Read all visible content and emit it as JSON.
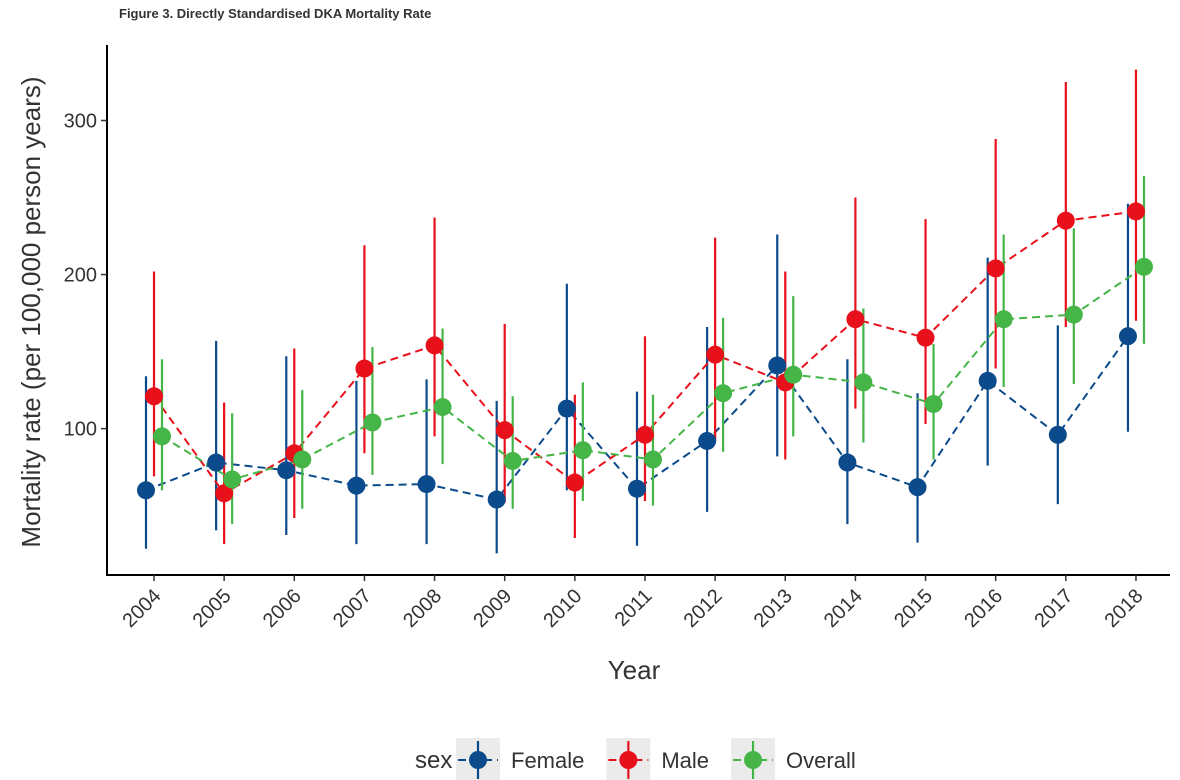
{
  "chart_data": {
    "type": "errorbar-line",
    "title": "Figure 3. Directly Standardised DKA Mortality Rate",
    "x_label": "Year",
    "y_label": "Mortality rate (per 100,000 person years)",
    "categories": [
      "2004",
      "2005",
      "2006",
      "2007",
      "2008",
      "2009",
      "2010",
      "2011",
      "2012",
      "2013",
      "2014",
      "2015",
      "2016",
      "2017",
      "2018"
    ],
    "ylim": [
      5,
      349
    ],
    "yticks": [
      100,
      200,
      300
    ],
    "legend_title": "sex",
    "legend_position": "bottom",
    "series": [
      {
        "name": "Female",
        "color": "#0b4a8b",
        "values": [
          60,
          78,
          73,
          63,
          64,
          54,
          113,
          61,
          92,
          141,
          78,
          62,
          131,
          96,
          160
        ],
        "lower": [
          22,
          34,
          31,
          25,
          25,
          19,
          60,
          24,
          46,
          82,
          38,
          26,
          76,
          51,
          98
        ],
        "upper": [
          134,
          157,
          147,
          131,
          132,
          118,
          194,
          124,
          166,
          226,
          145,
          123,
          211,
          167,
          246
        ]
      },
      {
        "name": "Male",
        "color": "#e8101a",
        "values": [
          121,
          58,
          84,
          139,
          154,
          99,
          65,
          96,
          148,
          130,
          171,
          159,
          204,
          235,
          241
        ],
        "lower": [
          69,
          25,
          42,
          84,
          95,
          52,
          29,
          53,
          92,
          80,
          113,
          103,
          139,
          166,
          170
        ],
        "upper": [
          202,
          117,
          152,
          219,
          237,
          168,
          122,
          160,
          224,
          202,
          250,
          236,
          288,
          325,
          333
        ]
      },
      {
        "name": "Overall",
        "color": "#45b547",
        "values": [
          95,
          67,
          80,
          104,
          114,
          79,
          86,
          80,
          123,
          135,
          130,
          116,
          171,
          174,
          205
        ],
        "lower": [
          60,
          38,
          48,
          70,
          77,
          48,
          53,
          50,
          85,
          95,
          91,
          80,
          127,
          129,
          155
        ],
        "upper": [
          145,
          110,
          125,
          153,
          165,
          121,
          130,
          122,
          172,
          186,
          178,
          155,
          226,
          230,
          264
        ]
      }
    ]
  }
}
